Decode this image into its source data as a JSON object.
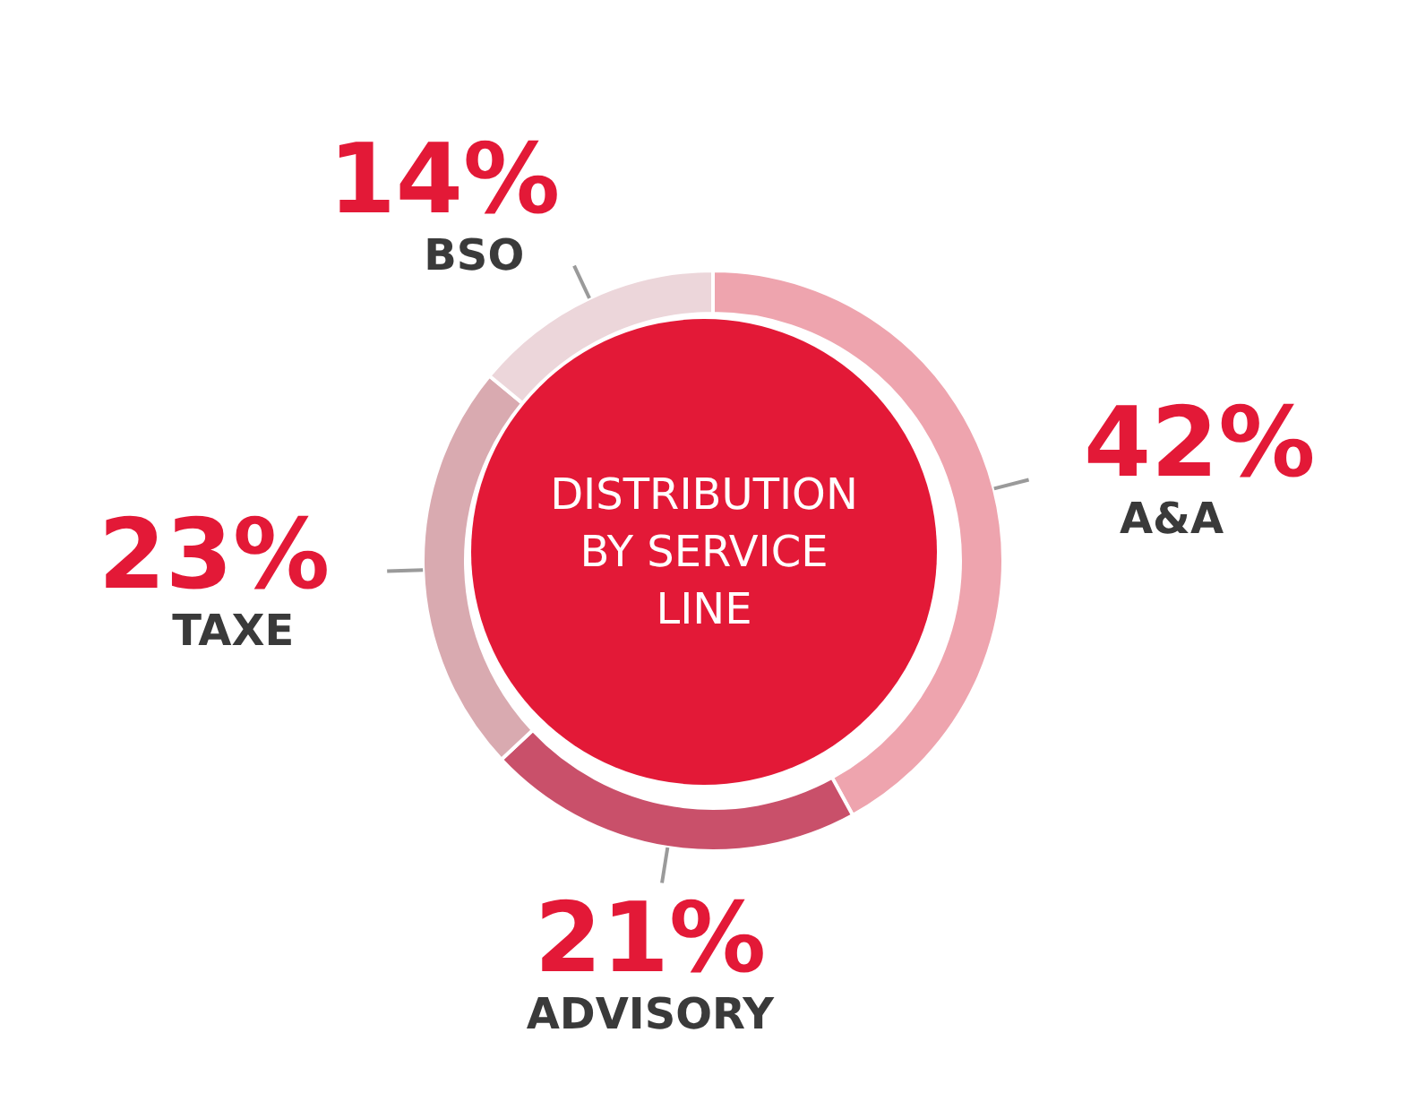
{
  "chart_data": {
    "type": "donut",
    "title": "DISTRIBUTION BY SERVICE LINE",
    "categories": [
      "A&A",
      "ADVISORY",
      "TAXE",
      "BSO"
    ],
    "values": [
      42,
      21,
      23,
      14
    ],
    "value_labels": [
      "42%",
      "21%",
      "23%",
      "14%"
    ],
    "colors": [
      "#eea4ae",
      "#c9506a",
      "#d9aab0",
      "#ecd6da"
    ]
  }
}
